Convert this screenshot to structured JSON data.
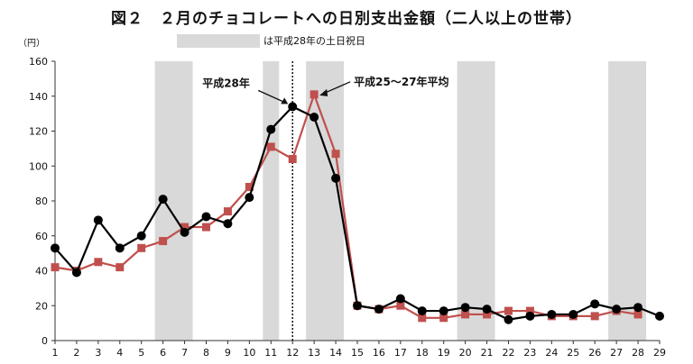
{
  "chart_data": {
    "type": "line",
    "title": "図２　２月のチョコレートへの日別支出金額（二人以上の世帯）",
    "unit_label": "（円）",
    "legend_note": "は平成28年の土日祝日",
    "x": [
      1,
      2,
      3,
      4,
      5,
      6,
      7,
      8,
      9,
      10,
      11,
      12,
      13,
      14,
      15,
      16,
      17,
      18,
      19,
      20,
      21,
      22,
      23,
      24,
      25,
      26,
      27,
      28,
      29
    ],
    "ylim": [
      0,
      160
    ],
    "yticks": [
      0,
      20,
      40,
      60,
      80,
      100,
      120,
      140,
      160
    ],
    "shaded_days": [
      [
        6,
        7
      ],
      [
        11,
        11
      ],
      [
        13,
        14
      ],
      [
        20,
        21
      ],
      [
        27,
        28
      ]
    ],
    "marker_day": 12,
    "series": [
      {
        "name": "平成28年",
        "color": "#000000",
        "marker": "circle",
        "values": [
          53,
          39,
          69,
          53,
          60,
          81,
          62,
          71,
          67,
          82,
          121,
          134,
          128,
          93,
          20,
          18,
          24,
          17,
          17,
          19,
          18,
          12,
          14,
          15,
          15,
          21,
          18,
          19,
          14
        ]
      },
      {
        "name": "平成25～27年平均",
        "color": "#c0504d",
        "marker": "square",
        "values": [
          42,
          40,
          45,
          42,
          53,
          57,
          65,
          65,
          74,
          88,
          111,
          104,
          141,
          107,
          20,
          18,
          20,
          13,
          13,
          15,
          15,
          17,
          17,
          14,
          14,
          14,
          17,
          15,
          null
        ]
      }
    ],
    "annotations": [
      {
        "text": "平成28年",
        "series": 0
      },
      {
        "text": "平成25～27年平均",
        "series": 1
      }
    ]
  }
}
